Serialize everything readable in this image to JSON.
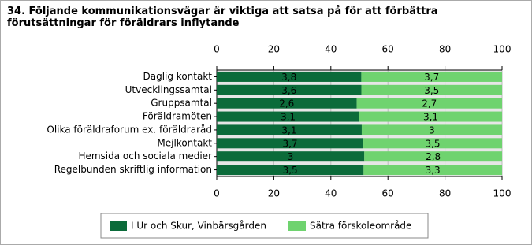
{
  "chart_data": {
    "type": "bar",
    "orientation": "horizontal",
    "stack": "percent",
    "title": "34. Följande kommunikationsvägar är viktiga att satsa på för att förbättra förutsättningar för föräldrars inflytande",
    "categories": [
      "Daglig kontakt",
      "Utvecklingssamtal",
      "Gruppsamtal",
      "Föräldramöten",
      "Olika föräldraforum ex. föräldraråd",
      "Mejlkontakt",
      "Hemsida och sociala medier",
      "Regelbunden skriftlig information"
    ],
    "series": [
      {
        "name": "I Ur och Skur, Vinbärsgården",
        "color": "#0b6b3a",
        "values": [
          3.8,
          3.6,
          2.6,
          3.1,
          3.1,
          3.7,
          3,
          3.5
        ],
        "value_labels": [
          "3,8",
          "3,6",
          "2,6",
          "3,1",
          "3,1",
          "3,7",
          "3",
          "3,5"
        ]
      },
      {
        "name": "Sätra förskoleområde",
        "color": "#6fd36f",
        "values": [
          3.7,
          3.5,
          2.7,
          3.1,
          3,
          3.5,
          2.8,
          3.3
        ],
        "value_labels": [
          "3,7",
          "3,5",
          "2,7",
          "3,1",
          "3",
          "3,5",
          "2,8",
          "3,3"
        ]
      }
    ],
    "xlim": [
      0,
      100
    ],
    "xticks": [
      0,
      20,
      40,
      60,
      80,
      100
    ],
    "grid": true
  }
}
